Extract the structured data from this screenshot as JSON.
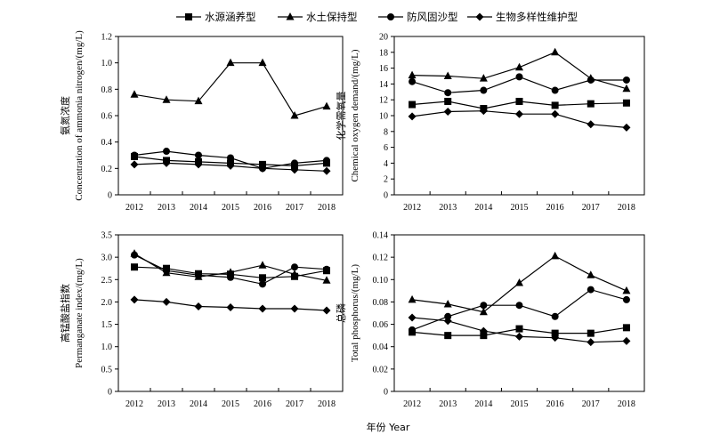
{
  "legend": [
    {
      "name": "水源涵养型",
      "marker": "square"
    },
    {
      "name": "水土保持型",
      "marker": "triangle"
    },
    {
      "name": "防风固沙型",
      "marker": "circle"
    },
    {
      "name": "生物多样性维护型",
      "marker": "diamond"
    }
  ],
  "x_axis_label": "年份 Year",
  "chart_data": [
    {
      "type": "line",
      "ylabel_cn": "氨氮浓度",
      "ylabel_en": "Concentration of ammonia nitrogen/(mg/L)",
      "x": [
        "2012",
        "2013",
        "2014",
        "2015",
        "2016",
        "2017",
        "2018"
      ],
      "ylim": [
        0,
        1.2
      ],
      "yticks": [
        "0",
        "0.2",
        "0.4",
        "0.6",
        "0.8",
        "1.0",
        "1.2"
      ],
      "series": [
        {
          "name": "水源涵养型",
          "marker": "square",
          "values": [
            0.29,
            0.26,
            0.25,
            0.24,
            0.23,
            0.22,
            0.24
          ]
        },
        {
          "name": "水土保持型",
          "marker": "triangle",
          "values": [
            0.76,
            0.72,
            0.71,
            1.0,
            1.0,
            0.6,
            0.67
          ]
        },
        {
          "name": "防风固沙型",
          "marker": "circle",
          "values": [
            0.3,
            0.33,
            0.3,
            0.28,
            0.2,
            0.24,
            0.26
          ]
        },
        {
          "name": "生物多样性维护型",
          "marker": "diamond",
          "values": [
            0.23,
            0.24,
            0.23,
            0.22,
            0.2,
            0.19,
            0.18
          ]
        }
      ]
    },
    {
      "type": "line",
      "ylabel_cn": "化学需氧量",
      "ylabel_en": "Chemical oxygen demand/(mg/L)",
      "x": [
        "2012",
        "2013",
        "2014",
        "2015",
        "2016",
        "2017",
        "2018"
      ],
      "ylim": [
        0,
        20
      ],
      "yticks": [
        "0",
        "2",
        "4",
        "6",
        "8",
        "10",
        "12",
        "14",
        "16",
        "18",
        "20"
      ],
      "series": [
        {
          "name": "水源涵养型",
          "marker": "square",
          "values": [
            11.4,
            11.8,
            10.9,
            11.8,
            11.3,
            11.5,
            11.6
          ]
        },
        {
          "name": "水土保持型",
          "marker": "triangle",
          "values": [
            15.1,
            15.0,
            14.7,
            16.1,
            18.0,
            14.7,
            13.4
          ]
        },
        {
          "name": "防风固沙型",
          "marker": "circle",
          "values": [
            14.3,
            12.9,
            13.2,
            14.9,
            13.2,
            14.5,
            14.5
          ]
        },
        {
          "name": "生物多样性维护型",
          "marker": "diamond",
          "values": [
            9.9,
            10.5,
            10.6,
            10.2,
            10.2,
            8.9,
            8.5
          ]
        }
      ]
    },
    {
      "type": "line",
      "ylabel_cn": "高锰酸盐指数",
      "ylabel_en": "Permanganate index/(mg/L)",
      "x": [
        "2012",
        "2013",
        "2014",
        "2015",
        "2016",
        "2017",
        "2018"
      ],
      "ylim": [
        0,
        3.5
      ],
      "yticks": [
        "0",
        "0.5",
        "1.0",
        "1.5",
        "2.0",
        "2.5",
        "3.0",
        "3.5"
      ],
      "series": [
        {
          "name": "水源涵养型",
          "marker": "square",
          "values": [
            2.78,
            2.75,
            2.63,
            2.62,
            2.54,
            2.57,
            2.7
          ]
        },
        {
          "name": "水土保持型",
          "marker": "triangle",
          "values": [
            3.08,
            2.65,
            2.56,
            2.66,
            2.82,
            2.62,
            2.48
          ]
        },
        {
          "name": "防风固沙型",
          "marker": "circle",
          "values": [
            3.05,
            2.7,
            2.6,
            2.55,
            2.4,
            2.78,
            2.73
          ]
        },
        {
          "name": "生物多样性维护型",
          "marker": "diamond",
          "values": [
            2.05,
            2.0,
            1.9,
            1.88,
            1.85,
            1.85,
            1.81
          ]
        }
      ]
    },
    {
      "type": "line",
      "ylabel_cn": "总磷",
      "ylabel_en": "Total phosphorus/(mg/L)",
      "x": [
        "2012",
        "2013",
        "2014",
        "2015",
        "2016",
        "2017",
        "2018"
      ],
      "ylim": [
        0,
        0.14
      ],
      "yticks": [
        "0",
        "0.02",
        "0.04",
        "0.06",
        "0.08",
        "0.10",
        "0.12",
        "0.14"
      ],
      "series": [
        {
          "name": "水源涵养型",
          "marker": "square",
          "values": [
            0.053,
            0.05,
            0.05,
            0.056,
            0.052,
            0.052,
            0.057
          ]
        },
        {
          "name": "水土保持型",
          "marker": "triangle",
          "values": [
            0.082,
            0.078,
            0.071,
            0.097,
            0.121,
            0.104,
            0.09
          ]
        },
        {
          "name": "防风固沙型",
          "marker": "circle",
          "values": [
            0.055,
            0.067,
            0.077,
            0.077,
            0.067,
            0.091,
            0.082
          ]
        },
        {
          "name": "生物多样性维护型",
          "marker": "diamond",
          "values": [
            0.066,
            0.063,
            0.054,
            0.049,
            0.048,
            0.044,
            0.045
          ]
        }
      ]
    }
  ]
}
